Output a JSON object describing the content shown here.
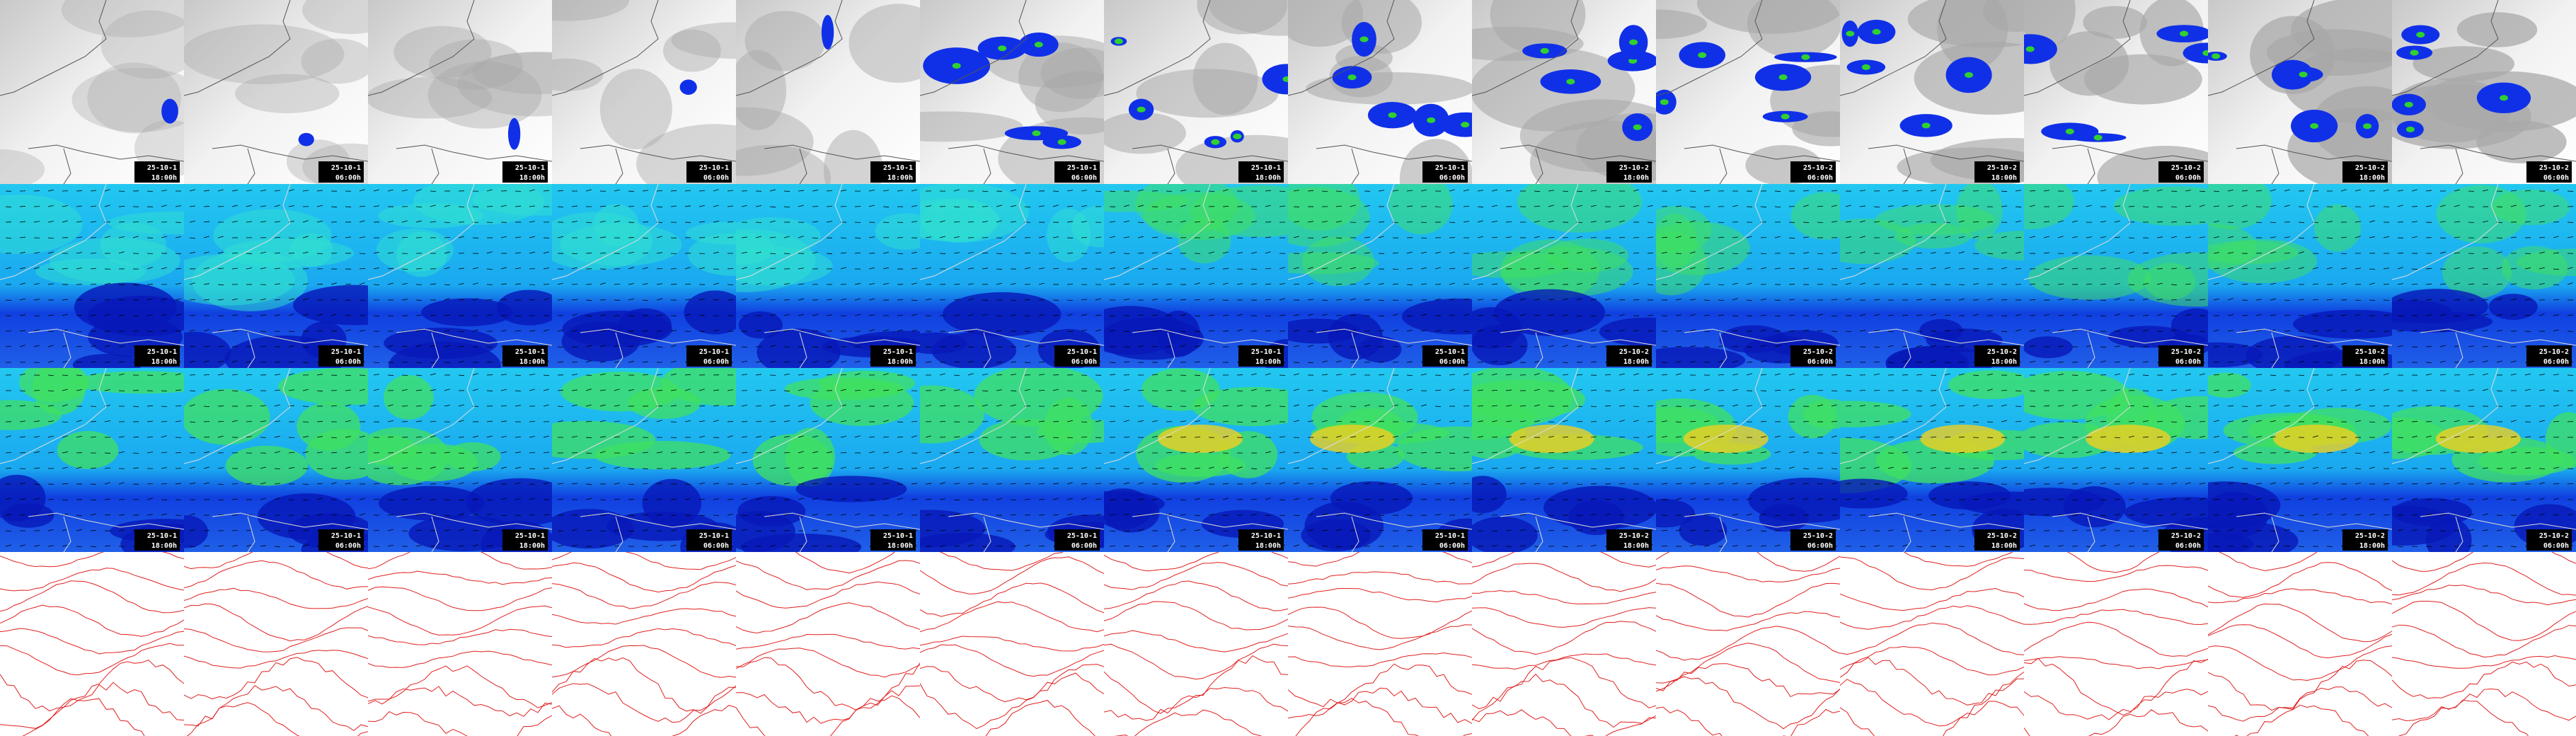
{
  "columns": [
    {
      "date": "25-10-1",
      "time": "18:00h"
    },
    {
      "date": "25-10-1",
      "time": "06:00h"
    },
    {
      "date": "25-10-1",
      "time": "18:00h"
    },
    {
      "date": "25-10-1",
      "time": "06:00h"
    },
    {
      "date": "25-10-1",
      "time": "18:00h"
    },
    {
      "date": "25-10-1",
      "time": "06:00h"
    },
    {
      "date": "25-10-1",
      "time": "18:00h"
    },
    {
      "date": "25-10-1",
      "time": "06:00h"
    },
    {
      "date": "25-10-2",
      "time": "18:00h"
    },
    {
      "date": "25-10-2",
      "time": "06:00h"
    },
    {
      "date": "25-10-2",
      "time": "18:00h"
    },
    {
      "date": "25-10-2",
      "time": "06:00h"
    },
    {
      "date": "25-10-2",
      "time": "18:00h"
    },
    {
      "date": "25-10-2",
      "time": "06:00h"
    }
  ]
}
